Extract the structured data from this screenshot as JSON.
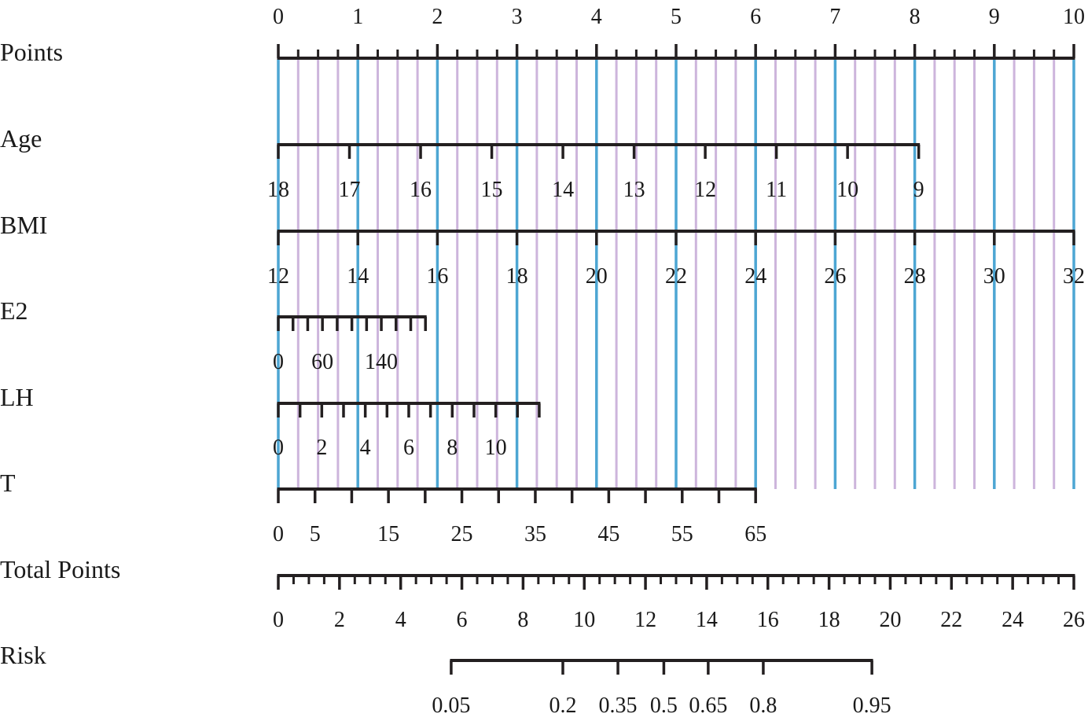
{
  "chart_data": {
    "type": "nomogram",
    "guide_colors": {
      "major": "#4da6d3",
      "minor": "#cdb5dc",
      "axis": "#231f20"
    },
    "rows": [
      {
        "id": "points",
        "label": "Points",
        "ticks": [
          0,
          1,
          2,
          3,
          4,
          5,
          6,
          7,
          8,
          9,
          10
        ],
        "minor_ticks": [
          0.25,
          0.5,
          0.75,
          1.25,
          1.5,
          1.75,
          2.25,
          2.5,
          2.75,
          3.25,
          3.5,
          3.75,
          4.25,
          4.5,
          4.75,
          5.25,
          5.5,
          5.75,
          6.25,
          6.5,
          6.75,
          7.25,
          7.5,
          7.75,
          8.25,
          8.5,
          8.75,
          9.25,
          9.5,
          9.75
        ],
        "labels": [
          "0",
          "1",
          "2",
          "3",
          "4",
          "5",
          "6",
          "7",
          "8",
          "9",
          "10"
        ]
      },
      {
        "id": "age",
        "label": "Age",
        "ticks": [
          18,
          17,
          16,
          15,
          14,
          13,
          12,
          11,
          10,
          9
        ],
        "labels": [
          "18",
          "17",
          "16",
          "15",
          "14",
          "13",
          "12",
          "11",
          "10",
          "9"
        ],
        "points_at_first": 0,
        "points_at_last": 8.05
      },
      {
        "id": "bmi",
        "label": "BMI",
        "ticks": [
          12,
          14,
          16,
          18,
          20,
          22,
          24,
          26,
          28,
          30,
          32
        ],
        "labels": [
          "12",
          "14",
          "16",
          "18",
          "20",
          "22",
          "24",
          "26",
          "28",
          "30",
          "32"
        ],
        "points_at_first": 0,
        "points_at_last": 10
      },
      {
        "id": "e2",
        "label": "E2",
        "ticks": [
          0,
          20,
          40,
          60,
          80,
          100,
          120,
          140,
          160,
          180,
          200
        ],
        "labels": [
          "0",
          "60",
          "140"
        ],
        "label_values": [
          0,
          60,
          140
        ],
        "points_at_first": 0,
        "points_at_last": 1.85
      },
      {
        "id": "lh",
        "label": "LH",
        "ticks": [
          0,
          1,
          2,
          3,
          4,
          5,
          6,
          7,
          8,
          9,
          10,
          11,
          12
        ],
        "labels": [
          "0",
          "2",
          "4",
          "6",
          "8",
          "10"
        ],
        "label_values": [
          0,
          2,
          4,
          6,
          8,
          10
        ],
        "points_at_first": 0,
        "points_at_last": 3.28
      },
      {
        "id": "t",
        "label": "T",
        "ticks": [
          0,
          5,
          10,
          15,
          20,
          25,
          30,
          35,
          40,
          45,
          50,
          55,
          60,
          65
        ],
        "labels": [
          "0",
          "5",
          "15",
          "25",
          "35",
          "45",
          "55",
          "65"
        ],
        "label_values": [
          0,
          5,
          15,
          25,
          35,
          45,
          55,
          65
        ],
        "points_at_first": 0,
        "points_at_last": 6.0
      },
      {
        "id": "total",
        "label": "Total Points",
        "ticks": [
          0,
          2,
          4,
          6,
          8,
          10,
          12,
          14,
          16,
          18,
          20,
          22,
          24,
          26
        ],
        "minor_step": 0.5,
        "labels": [
          "0",
          "2",
          "4",
          "6",
          "8",
          "10",
          "12",
          "14",
          "16",
          "18",
          "20",
          "22",
          "24",
          "26"
        ]
      },
      {
        "id": "risk",
        "label": "Risk",
        "ticks": [
          0.05,
          0.2,
          0.35,
          0.5,
          0.65,
          0.8,
          0.95
        ],
        "labels": [
          "0.05",
          "0.2",
          "0.35",
          "0.5",
          "0.65",
          "0.8",
          "0.95"
        ],
        "total_points_at_ticks": [
          5.65,
          9.3,
          11.1,
          12.6,
          14.05,
          15.85,
          19.4
        ]
      }
    ]
  }
}
